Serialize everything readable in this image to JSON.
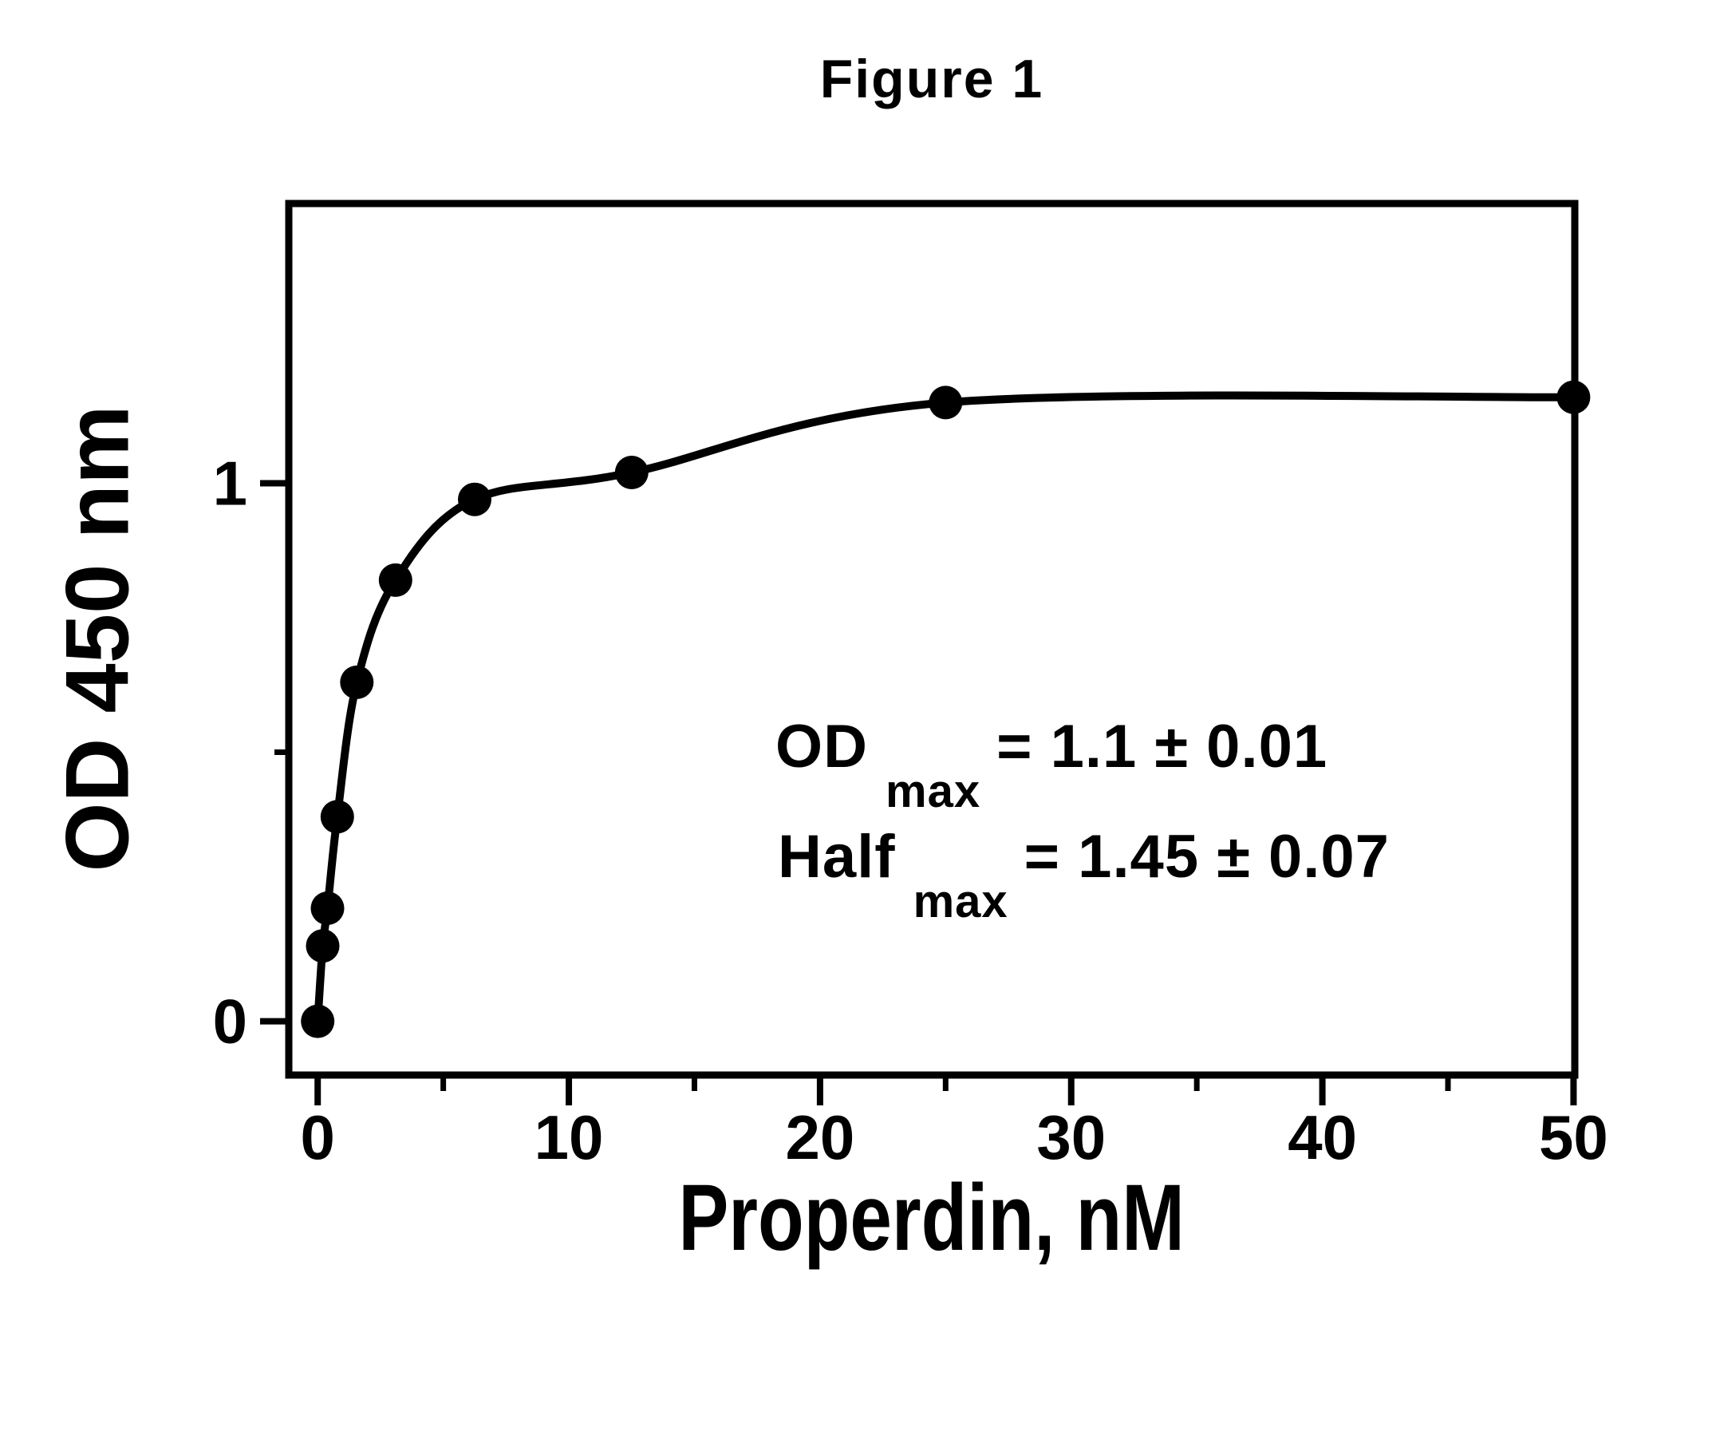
{
  "figure": {
    "title": "Figure 1",
    "y_axis_label": "OD 450 nm",
    "x_axis_label": "Properdin, nM",
    "annotation": {
      "line1": {
        "base": "OD",
        "sub": "max",
        "value": "= 1.1 ± 0.01"
      },
      "line2": {
        "base": "Half",
        "sub": "max",
        "value": "= 1.45 ± 0.07"
      }
    },
    "ink_color": "#000000",
    "background_color": "#ffffff"
  },
  "chart_data": {
    "type": "scatter",
    "title": "Figure 1",
    "xlabel": "Properdin, nM",
    "ylabel": "OD 450 nm",
    "points": [
      {
        "x": 0,
        "y": 0
      },
      {
        "x": 0.2,
        "y": 0.14
      },
      {
        "x": 0.39,
        "y": 0.21
      },
      {
        "x": 0.78,
        "y": 0.38
      },
      {
        "x": 1.56,
        "y": 0.63
      },
      {
        "x": 3.1,
        "y": 0.82
      },
      {
        "x": 6.25,
        "y": 0.97
      },
      {
        "x": 12.5,
        "y": 1.02
      },
      {
        "x": 25,
        "y": 1.15
      },
      {
        "x": 50,
        "y": 1.16
      }
    ],
    "fit_curve": {
      "style": "smooth curve drawn through the data points",
      "od_max_label": "1.1 ± 0.01",
      "half_max_label": "1.45 ± 0.07"
    },
    "xlim": [
      -1.15,
      50.05
    ],
    "ylim": [
      -0.1,
      1.52
    ],
    "x_ticks_major": [
      0,
      10,
      20,
      30,
      40,
      50
    ],
    "x_tick_labels": [
      "0",
      "10",
      "20",
      "30",
      "40",
      "50"
    ],
    "x_ticks_minor": [
      5,
      15,
      25,
      35,
      45
    ],
    "y_ticks_major": [
      0,
      1
    ],
    "y_tick_labels": [
      "0",
      "1"
    ],
    "y_ticks_minor": [
      0.5
    ],
    "grid": false,
    "legend": null,
    "marker": {
      "shape": "circle",
      "radius_px": 21,
      "color": "#000000"
    },
    "line_color": "#000000"
  }
}
